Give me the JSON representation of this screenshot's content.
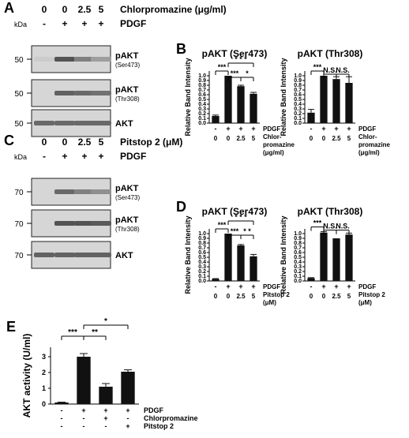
{
  "panels": {
    "A": {
      "letter": "A",
      "row1": [
        "0",
        "0",
        "2.5",
        "5"
      ],
      "row1_label": "Chlorpromazine (μg/ml)",
      "row2": [
        "-",
        "+",
        "+",
        "+"
      ],
      "row2_label": "PDGF",
      "kda": "kDa",
      "blots": [
        {
          "marker": "50",
          "name": "pAKT",
          "sub": "(Ser473)",
          "levels": [
            0.05,
            0.85,
            0.55,
            0.35
          ]
        },
        {
          "marker": "50",
          "name": "pAKT",
          "sub": "(Thr308)",
          "levels": [
            0.0,
            0.75,
            0.7,
            0.65
          ]
        },
        {
          "marker": "50",
          "name": "AKT",
          "sub": "",
          "levels": [
            0.7,
            0.7,
            0.7,
            0.7
          ]
        }
      ]
    },
    "C": {
      "letter": "C",
      "row1": [
        "0",
        "0",
        "2.5",
        "5"
      ],
      "row1_label": "Pitstop 2 (μM)",
      "row2": [
        "-",
        "+",
        "+",
        "+"
      ],
      "row2_label": "PDGF",
      "kda": "kDa",
      "blots": [
        {
          "marker": "70",
          "name": "pAKT",
          "sub": "(Ser473)",
          "levels": [
            0.0,
            0.7,
            0.55,
            0.45
          ]
        },
        {
          "marker": "70",
          "name": "pAKT",
          "sub": "(Thr308)",
          "levels": [
            0.0,
            0.85,
            0.85,
            0.8
          ]
        },
        {
          "marker": "70",
          "name": "AKT",
          "sub": "",
          "levels": [
            0.75,
            0.75,
            0.75,
            0.75
          ]
        }
      ]
    },
    "B": {
      "letter": "B"
    },
    "D": {
      "letter": "D"
    },
    "E": {
      "letter": "E"
    }
  },
  "chart_data": [
    {
      "panel": "B",
      "type": "bar",
      "title": "pAKT (Ser473)",
      "ylabel": "Relative Band Intensity",
      "ylim": [
        0,
        1.1
      ],
      "yticks": [
        "0.0",
        "0.1",
        "0.2",
        "0.3",
        "0.4",
        "0.5",
        "0.6",
        "0.7",
        "0.8",
        "0.9",
        "1.0"
      ],
      "categories": [
        "0",
        "0",
        "2.5",
        "5"
      ],
      "pdgf": [
        "-",
        "+",
        "+",
        "+"
      ],
      "values": [
        0.15,
        1.0,
        0.78,
        0.62
      ],
      "errors": [
        0.02,
        0.0,
        0.02,
        0.03
      ],
      "row_labels": [
        "PDGF",
        "Chlor-",
        "promazine",
        "(μg/ml)"
      ],
      "sig": [
        "***",
        "***",
        "*",
        "* * *"
      ]
    },
    {
      "panel": "B",
      "type": "bar",
      "title": "pAKT (Thr308)",
      "ylabel": "Relative Band Intensity",
      "ylim": [
        0,
        1.1
      ],
      "yticks": [
        "0.0",
        "0.1",
        "0.2",
        "0.3",
        "0.4",
        "0.5",
        "0.6",
        "0.7",
        "0.8",
        "0.9",
        "1.0"
      ],
      "categories": [
        "0",
        "0",
        "2.5",
        "5"
      ],
      "pdgf": [
        "-",
        "+",
        "+",
        "+"
      ],
      "values": [
        0.22,
        1.0,
        0.93,
        0.85
      ],
      "errors": [
        0.07,
        0.0,
        0.05,
        0.13
      ],
      "row_labels": [
        "PDGF",
        "Chlor-",
        "promazine",
        "(μg/ml)"
      ],
      "sig": [
        "***",
        "N.S.",
        "N.S."
      ]
    },
    {
      "panel": "D",
      "type": "bar",
      "title": "pAKT (Ser473)",
      "ylabel": "Relative Band Intensity",
      "ylim": [
        0,
        1.1
      ],
      "yticks": [
        "0.0",
        "0.1",
        "0.2",
        "0.3",
        "0.4",
        "0.5",
        "0.6",
        "0.7",
        "0.8",
        "0.9",
        "1.0"
      ],
      "categories": [
        "0",
        "0",
        "2.5",
        "5"
      ],
      "pdgf": [
        "-",
        "+",
        "+",
        "+"
      ],
      "values": [
        0.04,
        1.0,
        0.75,
        0.52
      ],
      "errors": [
        0.01,
        0.0,
        0.02,
        0.04
      ],
      "row_labels": [
        "PDGF",
        "Pitstop 2",
        "(μM)"
      ],
      "sig": [
        "***",
        "***",
        "* *",
        "* * *"
      ]
    },
    {
      "panel": "D",
      "type": "bar",
      "title": "pAKT (Thr308)",
      "ylabel": "Relative Band Intensity",
      "ylim": [
        0,
        1.1
      ],
      "yticks": [
        "0.0",
        "0.1",
        "0.2",
        "0.3",
        "0.4",
        "0.5",
        "0.6",
        "0.7",
        "0.8",
        "0.9",
        "1.0"
      ],
      "categories": [
        "0",
        "0",
        "2.5",
        "5"
      ],
      "pdgf": [
        "-",
        "+",
        "+",
        "+"
      ],
      "values": [
        0.06,
        1.02,
        0.9,
        0.98
      ],
      "errors": [
        0.01,
        0.02,
        0.0,
        0.03
      ],
      "row_labels": [
        "PDGF",
        "Pitstop 2",
        "(μM)"
      ],
      "sig": [
        "***",
        "N.S.",
        "N.S."
      ]
    },
    {
      "panel": "E",
      "type": "bar",
      "ylabel": "AKT activity (U/ml)",
      "ylim": [
        0,
        3.6
      ],
      "yticks": [
        "0",
        "1",
        "2",
        "3"
      ],
      "values": [
        0.1,
        3.0,
        1.1,
        2.05
      ],
      "errors": [
        0.02,
        0.2,
        0.2,
        0.12
      ],
      "treatments": [
        {
          "name": "PDGF",
          "signs": [
            "-",
            "+",
            "+",
            "+"
          ]
        },
        {
          "name": "Chlorpromazine",
          "signs": [
            "-",
            "-",
            "+",
            "-"
          ]
        },
        {
          "name": "Pitstop 2",
          "signs": [
            "-",
            "-",
            "-",
            "+"
          ]
        }
      ],
      "sig": [
        "***",
        "**",
        "*"
      ]
    }
  ]
}
